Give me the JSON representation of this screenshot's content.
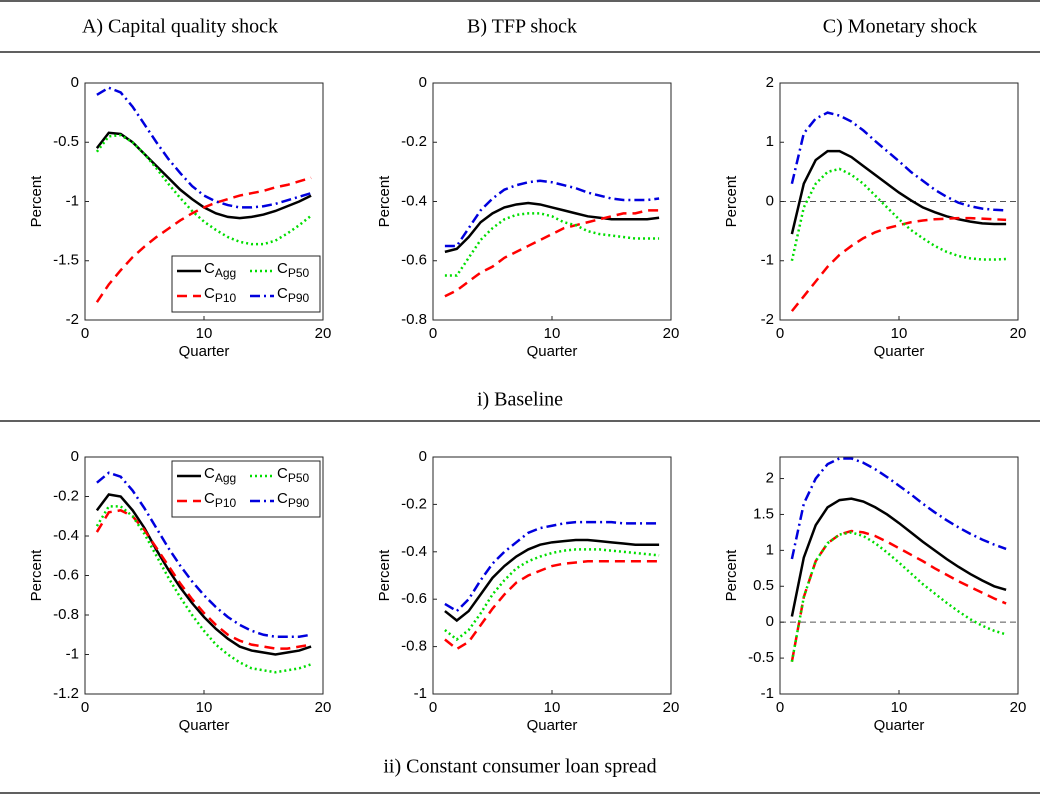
{
  "columns": [
    "A) Capital quality shock",
    "B) TFP shock",
    "C) Monetary shock"
  ],
  "rows": [
    "i) Baseline",
    "ii) Constant consumer loan spread"
  ],
  "chart_data": [
    {
      "type": "line",
      "xlabel": "Quarter",
      "ylabel": "Percent",
      "legend": "lower right",
      "zero_line": true,
      "x": [
        1,
        2,
        3,
        4,
        5,
        6,
        7,
        8,
        9,
        10,
        11,
        12,
        13,
        14,
        15,
        16,
        17,
        18,
        19
      ],
      "xlim": [
        0,
        20
      ],
      "xticks": [
        0,
        10,
        20
      ],
      "ylim": [
        -2,
        0
      ],
      "yticks": [
        -2,
        -1.5,
        -1,
        -0.5,
        0
      ],
      "series": [
        {
          "name": "CAgg",
          "color": "#000000",
          "style": "solid",
          "values": [
            -0.55,
            -0.42,
            -0.43,
            -0.5,
            -0.6,
            -0.7,
            -0.8,
            -0.9,
            -0.98,
            -1.05,
            -1.1,
            -1.13,
            -1.14,
            -1.13,
            -1.11,
            -1.08,
            -1.04,
            -1.0,
            -0.95
          ]
        },
        {
          "name": "CP10",
          "color": "#ff0000",
          "style": "dashed",
          "values": [
            -1.85,
            -1.7,
            -1.58,
            -1.47,
            -1.38,
            -1.3,
            -1.23,
            -1.16,
            -1.1,
            -1.05,
            -1.01,
            -0.98,
            -0.95,
            -0.93,
            -0.91,
            -0.88,
            -0.86,
            -0.83,
            -0.8
          ]
        },
        {
          "name": "CP50",
          "color": "#00dd00",
          "style": "dotted",
          "values": [
            -0.58,
            -0.45,
            -0.44,
            -0.5,
            -0.6,
            -0.72,
            -0.85,
            -0.97,
            -1.08,
            -1.17,
            -1.24,
            -1.3,
            -1.34,
            -1.36,
            -1.36,
            -1.33,
            -1.27,
            -1.2,
            -1.12
          ]
        },
        {
          "name": "CP90",
          "color": "#0000dd",
          "style": "dashdot",
          "values": [
            -0.1,
            -0.04,
            -0.08,
            -0.2,
            -0.35,
            -0.5,
            -0.64,
            -0.76,
            -0.87,
            -0.95,
            -1.0,
            -1.03,
            -1.05,
            -1.05,
            -1.04,
            -1.02,
            -0.99,
            -0.96,
            -0.93
          ]
        }
      ]
    },
    {
      "type": "line",
      "xlabel": "Quarter",
      "ylabel": "Percent",
      "zero_line": true,
      "x": [
        1,
        2,
        3,
        4,
        5,
        6,
        7,
        8,
        9,
        10,
        11,
        12,
        13,
        14,
        15,
        16,
        17,
        18,
        19
      ],
      "xlim": [
        0,
        20
      ],
      "xticks": [
        0,
        10,
        20
      ],
      "ylim": [
        -0.8,
        0
      ],
      "yticks": [
        -0.8,
        -0.6,
        -0.4,
        -0.2,
        0
      ],
      "series": [
        {
          "name": "CAgg",
          "color": "#000000",
          "style": "solid",
          "values": [
            -0.57,
            -0.56,
            -0.52,
            -0.47,
            -0.44,
            -0.42,
            -0.41,
            -0.405,
            -0.41,
            -0.42,
            -0.43,
            -0.44,
            -0.45,
            -0.455,
            -0.46,
            -0.46,
            -0.46,
            -0.46,
            -0.455
          ]
        },
        {
          "name": "CP10",
          "color": "#ff0000",
          "style": "dashed",
          "values": [
            -0.72,
            -0.7,
            -0.67,
            -0.64,
            -0.62,
            -0.59,
            -0.57,
            -0.55,
            -0.53,
            -0.51,
            -0.49,
            -0.48,
            -0.47,
            -0.46,
            -0.45,
            -0.44,
            -0.44,
            -0.43,
            -0.43
          ]
        },
        {
          "name": "CP50",
          "color": "#00dd00",
          "style": "dotted",
          "values": [
            -0.65,
            -0.65,
            -0.59,
            -0.53,
            -0.49,
            -0.46,
            -0.445,
            -0.44,
            -0.44,
            -0.45,
            -0.47,
            -0.48,
            -0.5,
            -0.51,
            -0.515,
            -0.52,
            -0.525,
            -0.525,
            -0.525
          ]
        },
        {
          "name": "CP90",
          "color": "#0000dd",
          "style": "dashdot",
          "values": [
            -0.55,
            -0.55,
            -0.49,
            -0.43,
            -0.39,
            -0.36,
            -0.345,
            -0.335,
            -0.33,
            -0.335,
            -0.345,
            -0.355,
            -0.37,
            -0.38,
            -0.39,
            -0.395,
            -0.395,
            -0.395,
            -0.39
          ]
        }
      ]
    },
    {
      "type": "line",
      "xlabel": "Quarter",
      "ylabel": "Percent",
      "zero_line": true,
      "x": [
        1,
        2,
        3,
        4,
        5,
        6,
        7,
        8,
        9,
        10,
        11,
        12,
        13,
        14,
        15,
        16,
        17,
        18,
        19
      ],
      "xlim": [
        0,
        20
      ],
      "xticks": [
        0,
        10,
        20
      ],
      "ylim": [
        -2,
        2
      ],
      "yticks": [
        -2,
        -1,
        0,
        1,
        2
      ],
      "series": [
        {
          "name": "CAgg",
          "color": "#000000",
          "style": "solid",
          "values": [
            -0.55,
            0.3,
            0.7,
            0.85,
            0.85,
            0.75,
            0.6,
            0.45,
            0.3,
            0.15,
            0.02,
            -0.1,
            -0.18,
            -0.25,
            -0.3,
            -0.34,
            -0.37,
            -0.38,
            -0.38
          ]
        },
        {
          "name": "CP10",
          "color": "#ff0000",
          "style": "dashed",
          "values": [
            -1.85,
            -1.6,
            -1.35,
            -1.1,
            -0.9,
            -0.75,
            -0.62,
            -0.52,
            -0.45,
            -0.4,
            -0.35,
            -0.32,
            -0.3,
            -0.29,
            -0.28,
            -0.28,
            -0.29,
            -0.3,
            -0.31
          ]
        },
        {
          "name": "CP50",
          "color": "#00dd00",
          "style": "dotted",
          "values": [
            -1.0,
            -0.1,
            0.3,
            0.5,
            0.55,
            0.45,
            0.3,
            0.1,
            -0.1,
            -0.3,
            -0.48,
            -0.62,
            -0.75,
            -0.85,
            -0.92,
            -0.96,
            -0.98,
            -0.98,
            -0.97
          ]
        },
        {
          "name": "CP90",
          "color": "#0000dd",
          "style": "dashdot",
          "values": [
            0.3,
            1.15,
            1.4,
            1.5,
            1.45,
            1.35,
            1.2,
            1.02,
            0.85,
            0.68,
            0.5,
            0.35,
            0.2,
            0.08,
            -0.02,
            -0.08,
            -0.12,
            -0.14,
            -0.15
          ]
        }
      ]
    },
    {
      "type": "line",
      "xlabel": "Quarter",
      "ylabel": "Percent",
      "legend": "upper right",
      "zero_line": true,
      "x": [
        1,
        2,
        3,
        4,
        5,
        6,
        7,
        8,
        9,
        10,
        11,
        12,
        13,
        14,
        15,
        16,
        17,
        18,
        19
      ],
      "xlim": [
        0,
        20
      ],
      "xticks": [
        0,
        10,
        20
      ],
      "ylim": [
        -1.2,
        0
      ],
      "yticks": [
        -1.2,
        -1,
        -0.8,
        -0.6,
        -0.4,
        -0.2,
        0
      ],
      "series": [
        {
          "name": "CAgg",
          "color": "#000000",
          "style": "solid",
          "values": [
            -0.27,
            -0.19,
            -0.2,
            -0.27,
            -0.36,
            -0.47,
            -0.57,
            -0.66,
            -0.74,
            -0.81,
            -0.87,
            -0.92,
            -0.96,
            -0.98,
            -0.99,
            -1.0,
            -0.99,
            -0.98,
            -0.96
          ]
        },
        {
          "name": "CP10",
          "color": "#ff0000",
          "style": "dashed",
          "values": [
            -0.38,
            -0.28,
            -0.27,
            -0.3,
            -0.37,
            -0.46,
            -0.55,
            -0.64,
            -0.72,
            -0.79,
            -0.85,
            -0.9,
            -0.93,
            -0.95,
            -0.96,
            -0.97,
            -0.97,
            -0.96,
            -0.95
          ]
        },
        {
          "name": "CP50",
          "color": "#00dd00",
          "style": "dotted",
          "values": [
            -0.35,
            -0.25,
            -0.25,
            -0.3,
            -0.39,
            -0.5,
            -0.61,
            -0.71,
            -0.8,
            -0.88,
            -0.95,
            -1.0,
            -1.04,
            -1.07,
            -1.08,
            -1.09,
            -1.08,
            -1.07,
            -1.05
          ]
        },
        {
          "name": "CP90",
          "color": "#0000dd",
          "style": "dashdot",
          "values": [
            -0.13,
            -0.08,
            -0.1,
            -0.17,
            -0.26,
            -0.36,
            -0.46,
            -0.55,
            -0.63,
            -0.7,
            -0.76,
            -0.81,
            -0.85,
            -0.88,
            -0.9,
            -0.91,
            -0.91,
            -0.91,
            -0.9
          ]
        }
      ]
    },
    {
      "type": "line",
      "xlabel": "Quarter",
      "ylabel": "Percent",
      "zero_line": true,
      "x": [
        1,
        2,
        3,
        4,
        5,
        6,
        7,
        8,
        9,
        10,
        11,
        12,
        13,
        14,
        15,
        16,
        17,
        18,
        19
      ],
      "xlim": [
        0,
        20
      ],
      "xticks": [
        0,
        10,
        20
      ],
      "ylim": [
        -1,
        0
      ],
      "yticks": [
        -1,
        -0.8,
        -0.6,
        -0.4,
        -0.2,
        0
      ],
      "series": [
        {
          "name": "CAgg",
          "color": "#000000",
          "style": "solid",
          "values": [
            -0.65,
            -0.69,
            -0.65,
            -0.58,
            -0.51,
            -0.46,
            -0.42,
            -0.39,
            -0.37,
            -0.36,
            -0.355,
            -0.35,
            -0.35,
            -0.355,
            -0.36,
            -0.365,
            -0.37,
            -0.37,
            -0.37
          ]
        },
        {
          "name": "CP10",
          "color": "#ff0000",
          "style": "dashed",
          "values": [
            -0.77,
            -0.81,
            -0.78,
            -0.71,
            -0.64,
            -0.58,
            -0.53,
            -0.5,
            -0.48,
            -0.46,
            -0.45,
            -0.445,
            -0.44,
            -0.44,
            -0.44,
            -0.44,
            -0.44,
            -0.44,
            -0.44
          ]
        },
        {
          "name": "CP50",
          "color": "#00dd00",
          "style": "dotted",
          "values": [
            -0.73,
            -0.77,
            -0.73,
            -0.66,
            -0.58,
            -0.52,
            -0.47,
            -0.44,
            -0.42,
            -0.405,
            -0.395,
            -0.39,
            -0.39,
            -0.39,
            -0.395,
            -0.4,
            -0.405,
            -0.41,
            -0.415
          ]
        },
        {
          "name": "CP90",
          "color": "#0000dd",
          "style": "dashdot",
          "values": [
            -0.62,
            -0.65,
            -0.6,
            -0.52,
            -0.45,
            -0.4,
            -0.36,
            -0.32,
            -0.3,
            -0.29,
            -0.28,
            -0.275,
            -0.275,
            -0.275,
            -0.275,
            -0.28,
            -0.28,
            -0.28,
            -0.28
          ]
        }
      ]
    },
    {
      "type": "line",
      "xlabel": "Quarter",
      "ylabel": "Percent",
      "zero_line": true,
      "x": [
        1,
        2,
        3,
        4,
        5,
        6,
        7,
        8,
        9,
        10,
        11,
        12,
        13,
        14,
        15,
        16,
        17,
        18,
        19
      ],
      "xlim": [
        0,
        20
      ],
      "xticks": [
        0,
        10,
        20
      ],
      "ylim": [
        -1,
        2.3
      ],
      "yticks": [
        -1,
        -0.5,
        0,
        0.5,
        1,
        1.5,
        2
      ],
      "series": [
        {
          "name": "CAgg",
          "color": "#000000",
          "style": "solid",
          "values": [
            0.08,
            0.9,
            1.35,
            1.6,
            1.7,
            1.72,
            1.68,
            1.6,
            1.5,
            1.38,
            1.25,
            1.12,
            1.0,
            0.88,
            0.77,
            0.67,
            0.58,
            0.5,
            0.45
          ]
        },
        {
          "name": "CP10",
          "color": "#ff0000",
          "style": "dashed",
          "values": [
            -0.55,
            0.35,
            0.85,
            1.1,
            1.22,
            1.27,
            1.25,
            1.2,
            1.12,
            1.03,
            0.94,
            0.85,
            0.75,
            0.66,
            0.57,
            0.49,
            0.41,
            0.33,
            0.26
          ]
        },
        {
          "name": "CP50",
          "color": "#00dd00",
          "style": "dotted",
          "values": [
            -0.55,
            0.35,
            0.85,
            1.1,
            1.22,
            1.25,
            1.2,
            1.1,
            0.97,
            0.83,
            0.68,
            0.53,
            0.4,
            0.27,
            0.15,
            0.04,
            -0.05,
            -0.12,
            -0.17
          ]
        },
        {
          "name": "CP90",
          "color": "#0000dd",
          "style": "dashdot",
          "values": [
            0.88,
            1.65,
            2.0,
            2.2,
            2.28,
            2.28,
            2.22,
            2.13,
            2.02,
            1.9,
            1.78,
            1.65,
            1.53,
            1.42,
            1.32,
            1.23,
            1.15,
            1.08,
            1.02
          ]
        }
      ]
    }
  ]
}
